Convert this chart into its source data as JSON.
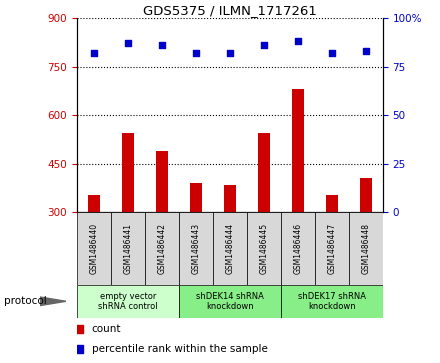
{
  "title": "GDS5375 / ILMN_1717261",
  "samples": [
    "GSM1486440",
    "GSM1486441",
    "GSM1486442",
    "GSM1486443",
    "GSM1486444",
    "GSM1486445",
    "GSM1486446",
    "GSM1486447",
    "GSM1486448"
  ],
  "counts": [
    355,
    545,
    490,
    390,
    385,
    545,
    680,
    355,
    405
  ],
  "percentile_ranks": [
    82,
    87,
    86,
    82,
    82,
    86,
    88,
    82,
    83
  ],
  "bar_color": "#cc0000",
  "dot_color": "#0000cc",
  "ylim_left": [
    300,
    900
  ],
  "ylim_right": [
    0,
    100
  ],
  "yticks_left": [
    300,
    450,
    600,
    750,
    900
  ],
  "yticks_right": [
    0,
    25,
    50,
    75,
    100
  ],
  "groups": [
    {
      "label": "empty vector\nshRNA control",
      "start": 0,
      "end": 3,
      "color": "#ccffcc"
    },
    {
      "label": "shDEK14 shRNA\nknockdown",
      "start": 3,
      "end": 6,
      "color": "#88ee88"
    },
    {
      "label": "shDEK17 shRNA\nknockdown",
      "start": 6,
      "end": 9,
      "color": "#88ee88"
    }
  ],
  "legend_count_label": "count",
  "legend_pct_label": "percentile rank within the sample",
  "protocol_label": "protocol",
  "bg_color": "#d8d8d8",
  "plot_bg": "#ffffff",
  "tick_label_color_left": "#cc0000",
  "tick_label_color_right": "#0000cc"
}
